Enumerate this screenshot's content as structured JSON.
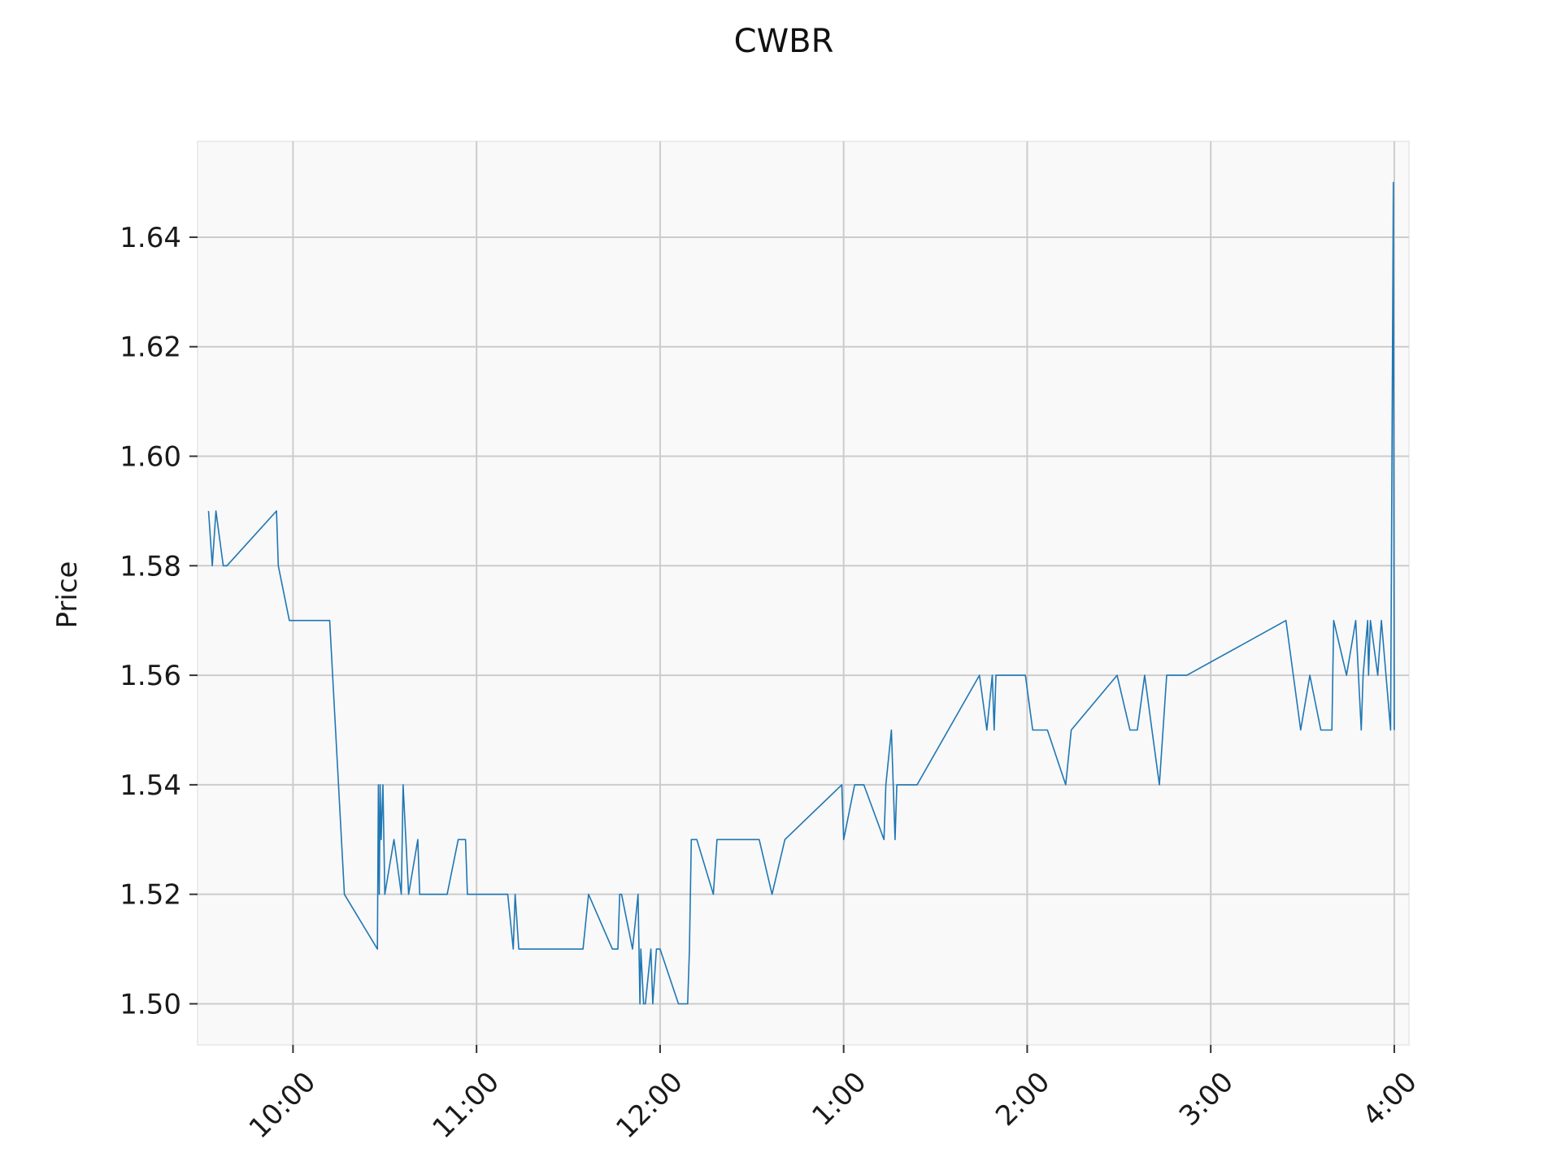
{
  "chart_data": {
    "type": "line",
    "title": "CWBR",
    "xlabel": "",
    "ylabel": "Price",
    "ylim": [
      1.4925,
      1.6575
    ],
    "xlim_hours": [
      9.48,
      16.08
    ],
    "grid": true,
    "colors": {
      "line": "#1f77b4",
      "plot_bg": "#f9f9f9",
      "grid": "#cccccc"
    },
    "x_ticks": [
      {
        "label": "10:00",
        "x": 10
      },
      {
        "label": "11:00",
        "x": 11
      },
      {
        "label": "12:00",
        "x": 12
      },
      {
        "label": "1:00",
        "x": 13
      },
      {
        "label": "2:00",
        "x": 14
      },
      {
        "label": "3:00",
        "x": 15
      },
      {
        "label": "4:00",
        "x": 16
      }
    ],
    "y_ticks": [
      {
        "label": "1.50",
        "y": 1.5
      },
      {
        "label": "1.52",
        "y": 1.52
      },
      {
        "label": "1.54",
        "y": 1.54
      },
      {
        "label": "1.56",
        "y": 1.56
      },
      {
        "label": "1.58",
        "y": 1.58
      },
      {
        "label": "1.60",
        "y": 1.6
      },
      {
        "label": "1.62",
        "y": 1.62
      },
      {
        "label": "1.64",
        "y": 1.64
      }
    ],
    "series": [
      {
        "x": [
          9.54,
          9.56,
          9.58,
          9.62,
          9.64,
          9.91,
          9.92,
          9.98,
          10.2,
          10.28,
          10.46,
          10.465,
          10.47,
          10.475,
          10.48,
          10.49,
          10.5,
          10.55,
          10.59,
          10.6,
          10.63,
          10.68,
          10.69,
          10.84,
          10.9,
          10.94,
          10.95,
          11.17,
          11.2,
          11.21,
          11.23,
          11.58,
          11.61,
          11.74,
          11.77,
          11.78,
          11.79,
          11.85,
          11.88,
          11.89,
          11.895,
          11.91,
          11.92,
          11.95,
          11.96,
          11.98,
          12.0,
          12.1,
          12.15,
          12.16,
          12.17,
          12.2,
          12.29,
          12.31,
          12.54,
          12.61,
          12.68,
          12.99,
          13.0,
          13.06,
          13.11,
          13.22,
          13.23,
          13.26,
          13.28,
          13.29,
          13.4,
          13.74,
          13.78,
          13.81,
          13.82,
          13.83,
          13.99,
          14.03,
          14.11,
          14.21,
          14.24,
          14.49,
          14.56,
          14.6,
          14.64,
          14.68,
          14.72,
          14.76,
          14.87,
          15.41,
          15.49,
          15.54,
          15.6,
          15.66,
          15.67,
          15.74,
          15.79,
          15.82,
          15.83,
          15.855,
          15.86,
          15.87,
          15.91,
          15.93,
          15.98,
          15.995,
          16.0
        ],
        "y": [
          1.59,
          1.58,
          1.59,
          1.58,
          1.58,
          1.59,
          1.58,
          1.57,
          1.57,
          1.52,
          1.51,
          1.54,
          1.52,
          1.54,
          1.53,
          1.54,
          1.52,
          1.53,
          1.52,
          1.54,
          1.52,
          1.53,
          1.52,
          1.52,
          1.53,
          1.53,
          1.52,
          1.52,
          1.51,
          1.52,
          1.51,
          1.51,
          1.52,
          1.51,
          1.51,
          1.52,
          1.52,
          1.51,
          1.52,
          1.5,
          1.51,
          1.5,
          1.5,
          1.51,
          1.5,
          1.51,
          1.51,
          1.5,
          1.5,
          1.51,
          1.53,
          1.53,
          1.52,
          1.53,
          1.53,
          1.52,
          1.53,
          1.54,
          1.53,
          1.54,
          1.54,
          1.53,
          1.54,
          1.55,
          1.53,
          1.54,
          1.54,
          1.56,
          1.55,
          1.56,
          1.55,
          1.56,
          1.56,
          1.55,
          1.55,
          1.54,
          1.55,
          1.56,
          1.55,
          1.55,
          1.56,
          1.55,
          1.54,
          1.56,
          1.56,
          1.57,
          1.55,
          1.56,
          1.55,
          1.55,
          1.57,
          1.56,
          1.57,
          1.55,
          1.56,
          1.57,
          1.56,
          1.57,
          1.56,
          1.57,
          1.55,
          1.65,
          1.55
        ]
      }
    ]
  }
}
